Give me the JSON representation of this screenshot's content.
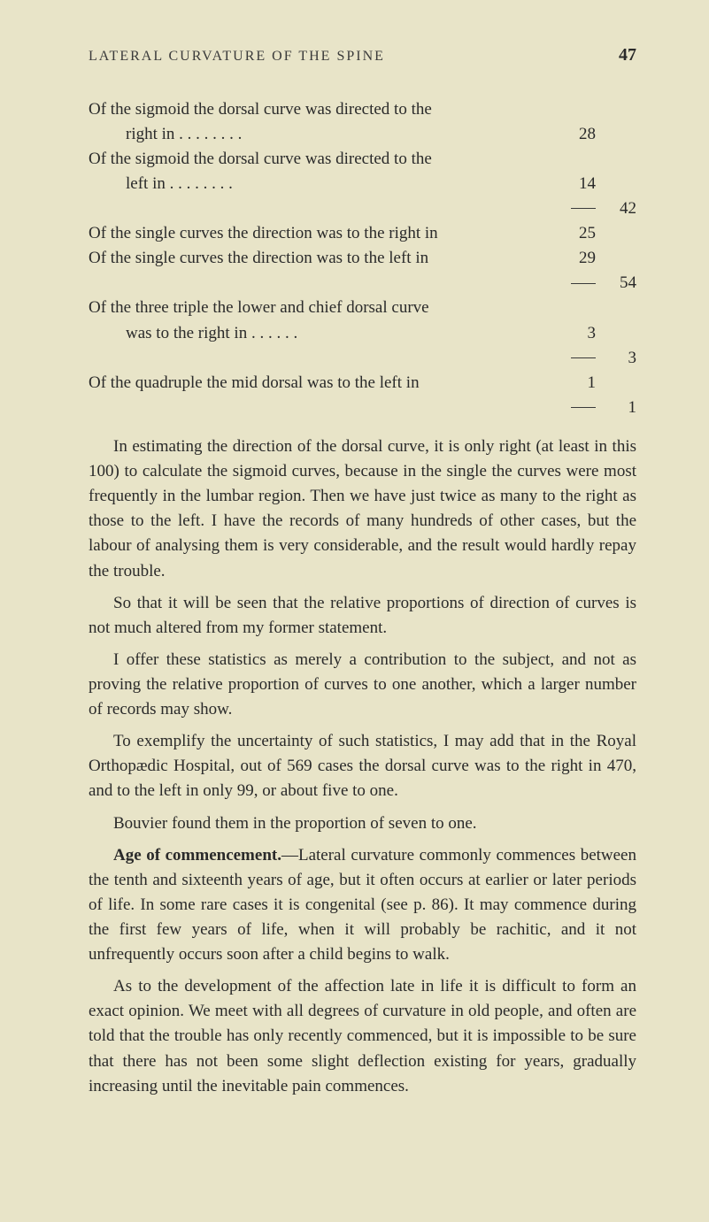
{
  "header": {
    "running_head": "LATERAL CURVATURE OF THE SPINE",
    "page_number": "47"
  },
  "stats": {
    "line1a": "Of the sigmoid the dorsal curve was directed to the",
    "line1b": "right in   .       .       .       .       .       .       .       .",
    "val1": "28",
    "line2a": "Of the sigmoid the dorsal curve was directed to the",
    "line2b": "left in     .       .       .       .       .       .       .       .",
    "val2": "14",
    "total1": "42",
    "line3": "Of the single curves the direction was to the right in",
    "val3": "25",
    "line4": "Of the single curves the direction was to the left in",
    "val4": "29",
    "total2": "54",
    "line5a": "Of the three triple the lower and chief dorsal curve",
    "line5b": "was to the right in   .       .       .       .       .       .",
    "val5": "3",
    "total3": "3",
    "line6": "Of the quadruple the mid dorsal was to the left in",
    "val6": "1",
    "total4": "1"
  },
  "body": {
    "p1": "In estimating the direction of the dorsal curve, it is only right (at least in this 100) to calculate the sigmoid curves, because in the single the curves were most frequently in the lumbar region. Then we have just twice as many to the right as those to the left. I have the records of many hundreds of other cases, but the labour of analysing them is very considerable, and the result would hardly repay the trouble.",
    "p2": "So that it will be seen that the relative proportions of direction of curves is not much altered from my former statement.",
    "p3": "I offer these statistics as merely a contribution to the subject, and not as proving the relative proportion of curves to one another, which a larger number of records may show.",
    "p4": "To exemplify the uncertainty of such statistics, I may add that in the Royal Orthopædic Hospital, out of 569 cases the dorsal curve was to the right in 470, and to the left in only 99, or about five to one.",
    "p5": "Bouvier found them in the proportion of seven to one.",
    "p6_label": "Age of commencement.",
    "p6_rest": "—Lateral curvature commonly commences between the tenth and sixteenth years of age, but it often occurs at earlier or later periods of life. In some rare cases it is congenital (see p. 86). It may commence during the first few years of life, when it will probably be rachitic, and it not unfrequently occurs soon after a child begins to walk.",
    "p7": "As to the development of the affection late in life it is difficult to form an exact opinion. We meet with all degrees of curvature in old people, and often are told that the trouble has only recently commenced, but it is impossible to be sure that there has not been some slight deflection existing for years, gradually increasing until the inevitable pain commences."
  }
}
